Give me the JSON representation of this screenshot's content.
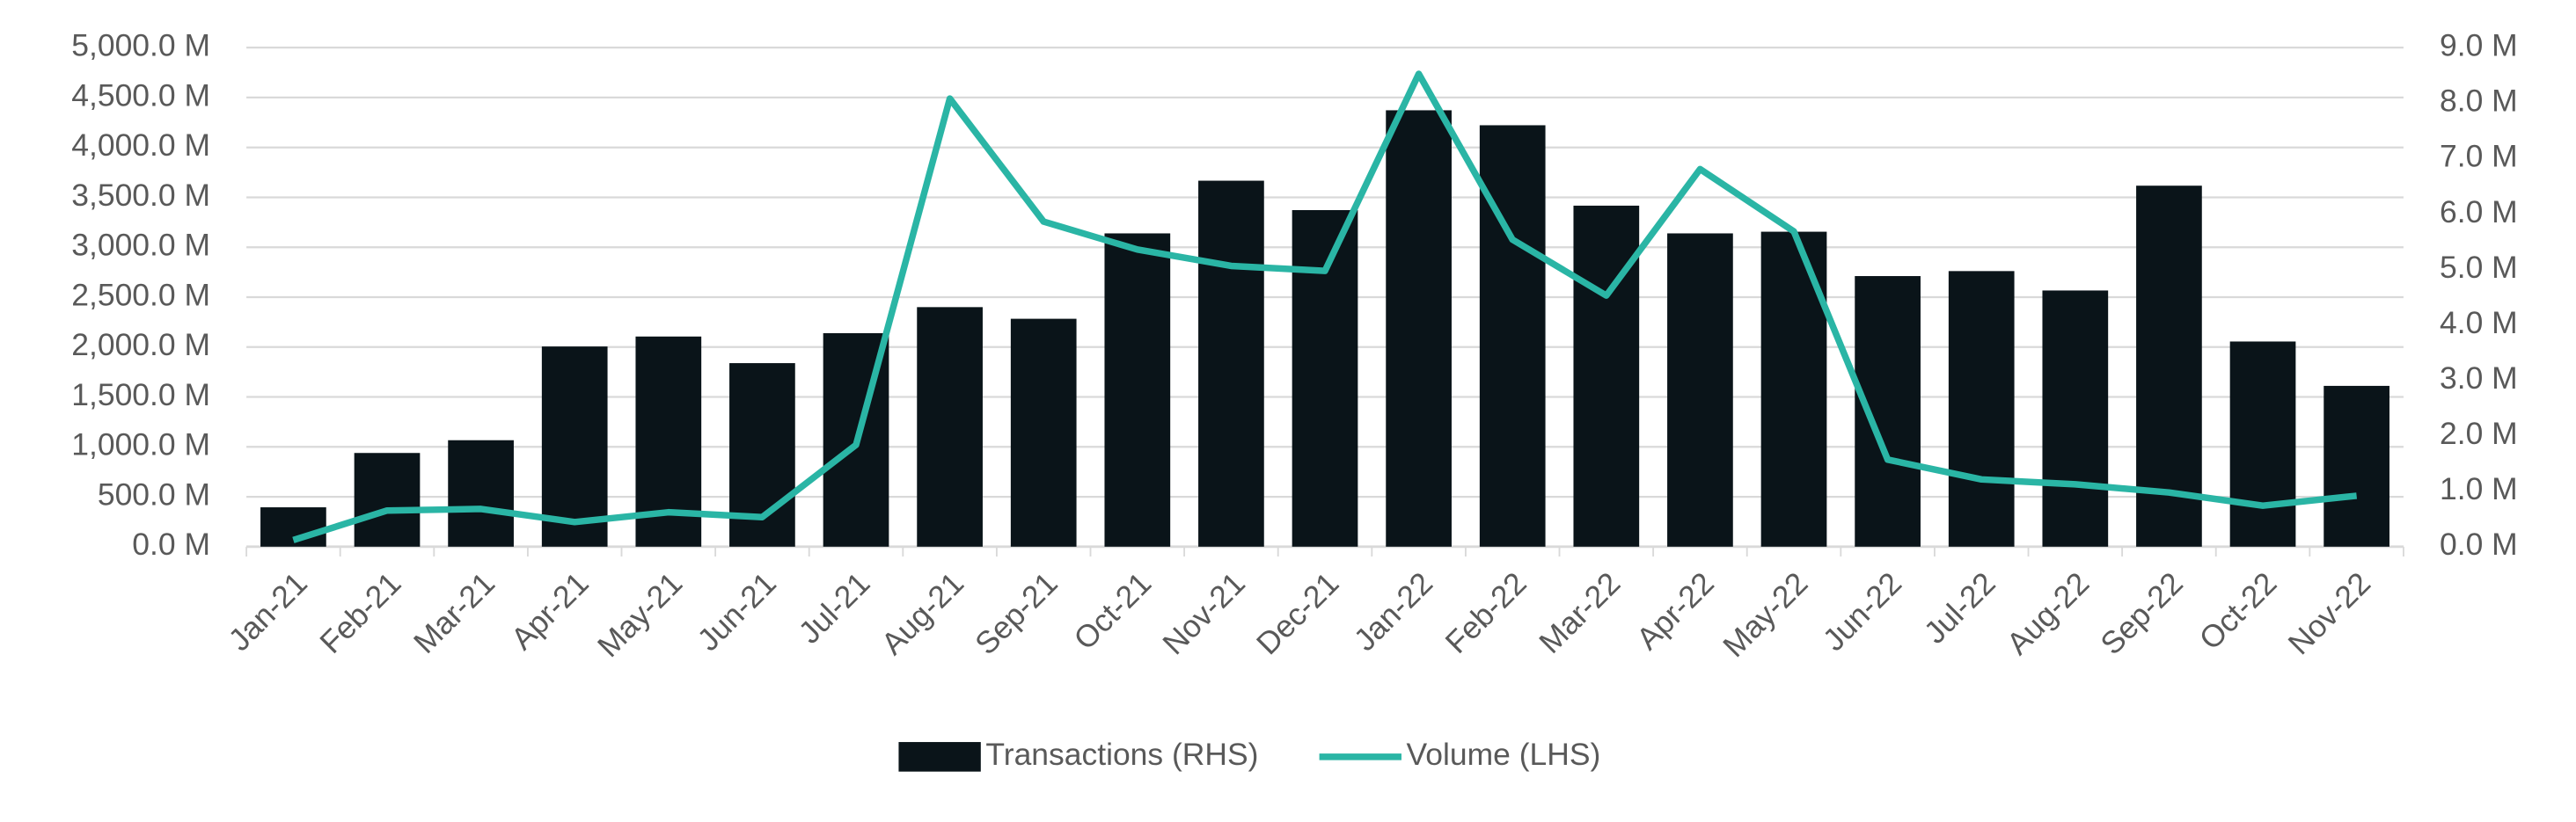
{
  "chart_data": {
    "type": "bar_line",
    "categories": [
      "Jan-21",
      "Feb-21",
      "Mar-21",
      "Apr-21",
      "May-21",
      "Jun-21",
      "Jul-21",
      "Aug-21",
      "Sep-21",
      "Oct-21",
      "Nov-21",
      "Dec-21",
      "Jan-22",
      "Feb-22",
      "Mar-22",
      "Apr-22",
      "May-22",
      "Jun-22",
      "Jul-22",
      "Aug-22",
      "Sep-22",
      "Oct-22",
      "Nov-22"
    ],
    "series": [
      {
        "name": "Transactions (RHS)",
        "type": "bar",
        "axis": "y2",
        "color": "#0a1419",
        "values": [
          0.71,
          1.69,
          1.92,
          3.61,
          3.79,
          3.31,
          3.85,
          4.32,
          4.11,
          5.65,
          6.6,
          6.07,
          7.87,
          7.6,
          6.15,
          5.65,
          5.68,
          4.88,
          4.97,
          4.62,
          6.51,
          3.7,
          2.9
        ]
      },
      {
        "name": "Volume (LHS)",
        "type": "line",
        "axis": "y",
        "color": "#2ab5a5",
        "values": [
          66,
          362,
          378,
          247,
          345,
          296,
          1020,
          4490,
          3257,
          2977,
          2813,
          2763,
          4737,
          3076,
          2516,
          3783,
          3158,
          872,
          674,
          625,
          543,
          411,
          510
        ]
      }
    ],
    "ylim": [
      0,
      5000
    ],
    "yticks": [
      {
        "value": 0,
        "label": "0.0 M"
      },
      {
        "value": 500,
        "label": "500.0 M"
      },
      {
        "value": 1000,
        "label": "1,000.0 M"
      },
      {
        "value": 1500,
        "label": "1,500.0 M"
      },
      {
        "value": 2000,
        "label": "2,000.0 M"
      },
      {
        "value": 2500,
        "label": "2,500.0 M"
      },
      {
        "value": 3000,
        "label": "3,000.0 M"
      },
      {
        "value": 3500,
        "label": "3,500.0 M"
      },
      {
        "value": 4000,
        "label": "4,000.0 M"
      },
      {
        "value": 4500,
        "label": "4,500.0 M"
      },
      {
        "value": 5000,
        "label": "5,000.0 M"
      }
    ],
    "y2lim": [
      0,
      9
    ],
    "y2ticks": [
      {
        "value": 0,
        "label": "0.0 M"
      },
      {
        "value": 1,
        "label": "1.0 M"
      },
      {
        "value": 2,
        "label": "2.0 M"
      },
      {
        "value": 3,
        "label": "3.0 M"
      },
      {
        "value": 4,
        "label": "4.0 M"
      },
      {
        "value": 5,
        "label": "5.0 M"
      },
      {
        "value": 6,
        "label": "6.0 M"
      },
      {
        "value": 7,
        "label": "7.0 M"
      },
      {
        "value": 8,
        "label": "8.0 M"
      },
      {
        "value": 9,
        "label": "9.0 M"
      }
    ],
    "grid": true,
    "legend": "bottom"
  }
}
